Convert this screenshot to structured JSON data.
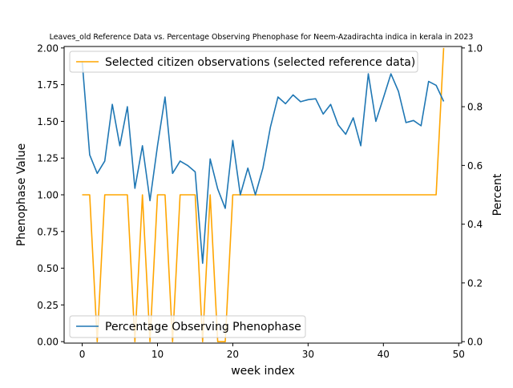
{
  "chart_data": {
    "type": "line",
    "title": "Leaves_old Reference Data vs. Percentage Observing Phenophase for Neem-Azadirachta indica in kerala in 2023",
    "xlabel": "week index",
    "ylabel_left": "Phenophase Value",
    "ylabel_right": "Percent",
    "xlim": [
      -2.4,
      50.4
    ],
    "ylim_left": [
      -0.01,
      2.01
    ],
    "ylim_right": [
      -0.005,
      1.005
    ],
    "x_ticks": [
      0,
      10,
      20,
      30,
      40,
      50
    ],
    "y_ticks_left": [
      "0.00",
      "0.25",
      "0.50",
      "0.75",
      "1.00",
      "1.25",
      "1.50",
      "1.75",
      "2.00"
    ],
    "y_ticks_right": [
      "0.0",
      "0.2",
      "0.4",
      "0.6",
      "0.8",
      "1.0"
    ],
    "grid": false,
    "series": [
      {
        "name": "Selected citizen observations (selected reference data)",
        "axis": "left",
        "color": "#ffa500",
        "legend_position": "top-left",
        "x": [
          0,
          1,
          2,
          3,
          4,
          5,
          6,
          7,
          8,
          9,
          10,
          11,
          12,
          13,
          14,
          15,
          16,
          17,
          18,
          19,
          20,
          21,
          22,
          23,
          24,
          25,
          26,
          27,
          28,
          29,
          30,
          31,
          32,
          33,
          34,
          35,
          36,
          37,
          38,
          39,
          40,
          41,
          42,
          43,
          44,
          45,
          46,
          47,
          48
        ],
        "values": [
          1,
          1,
          0,
          1,
          1,
          1,
          1,
          0,
          1,
          0,
          1,
          1,
          0,
          1,
          1,
          1,
          0,
          1,
          0,
          0,
          1,
          1,
          1,
          1,
          1,
          1,
          1,
          1,
          1,
          1,
          1,
          1,
          1,
          1,
          1,
          1,
          1,
          1,
          1,
          1,
          1,
          1,
          1,
          1,
          1,
          1,
          1,
          1,
          2
        ]
      },
      {
        "name": "Percentage Observing Phenophase",
        "axis": "right",
        "color": "#1f77b4",
        "legend_position": "bottom-left",
        "x": [
          0,
          1,
          2,
          3,
          4,
          5,
          6,
          7,
          8,
          9,
          10,
          11,
          12,
          13,
          14,
          15,
          16,
          17,
          18,
          19,
          20,
          21,
          22,
          23,
          24,
          25,
          26,
          27,
          28,
          29,
          30,
          31,
          32,
          33,
          34,
          35,
          36,
          37,
          38,
          39,
          40,
          41,
          42,
          43,
          44,
          45,
          46,
          47,
          48
        ],
        "values": [
          0.955,
          0.636,
          0.573,
          0.615,
          0.808,
          0.667,
          0.8,
          0.522,
          0.667,
          0.48,
          0.667,
          0.833,
          0.573,
          0.615,
          0.6,
          0.578,
          0.267,
          0.622,
          0.52,
          0.454,
          0.685,
          0.5,
          0.591,
          0.5,
          0.591,
          0.731,
          0.833,
          0.81,
          0.84,
          0.817,
          0.824,
          0.827,
          0.775,
          0.808,
          0.738,
          0.706,
          0.762,
          0.667,
          0.912,
          0.75,
          0.83,
          0.912,
          0.852,
          0.746,
          0.753,
          0.735,
          0.886,
          0.873,
          0.818
        ]
      }
    ]
  }
}
